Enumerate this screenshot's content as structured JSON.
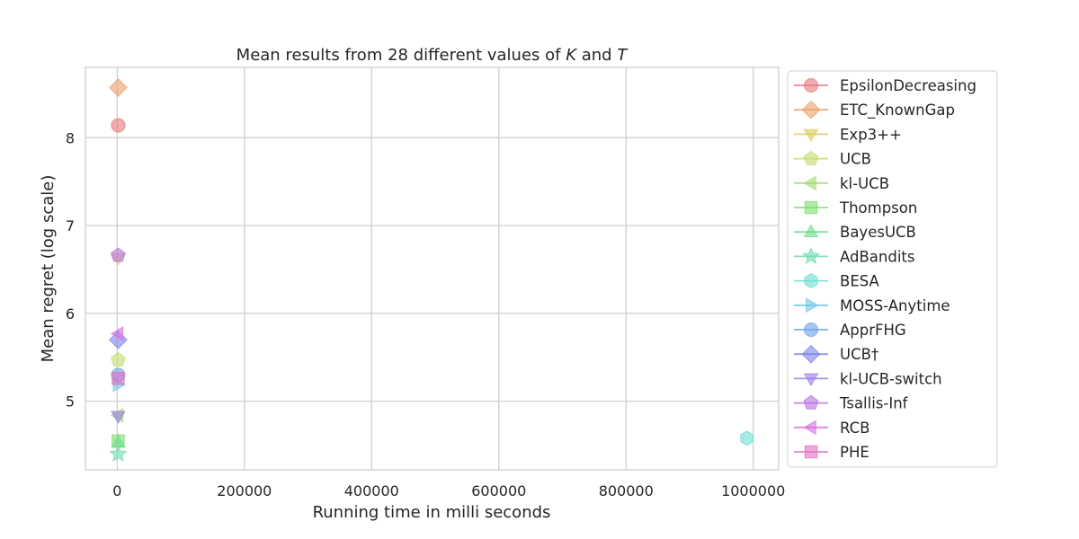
{
  "chart_data": {
    "type": "scatter",
    "title_text": "Mean results from 28 different values of ",
    "title_k": "K",
    "title_and": " and ",
    "title_t": "T",
    "xlabel": "Running time in milli seconds",
    "ylabel": "Mean regret (log scale)",
    "xlim": [
      -50000,
      1040000
    ],
    "ylim": [
      4.22,
      8.8
    ],
    "xticks": [
      0,
      200000,
      400000,
      600000,
      800000,
      1000000
    ],
    "xtick_labels": [
      "0",
      "200000",
      "400000",
      "600000",
      "800000",
      "1000000"
    ],
    "yticks": [
      5,
      6,
      7,
      8
    ],
    "ytick_labels": [
      "5",
      "6",
      "7",
      "8"
    ],
    "grid": true,
    "legend_position": "outside right",
    "series": [
      {
        "name": "EpsilonDecreasing",
        "marker": "circle",
        "color": "#e8747c",
        "x": 1500,
        "y": 8.14
      },
      {
        "name": "ETC_KnownGap",
        "marker": "diamond",
        "color": "#e9a06a",
        "x": 1500,
        "y": 8.57
      },
      {
        "name": "Exp3++",
        "marker": "triangle-down",
        "color": "#dcc85c",
        "x": 1500,
        "y": 6.63
      },
      {
        "name": "UCB",
        "marker": "pentagon",
        "color": "#c4dc6c",
        "x": 1500,
        "y": 5.47
      },
      {
        "name": "kl-UCB",
        "marker": "triangle-left",
        "color": "#a2dc6c",
        "x": 1500,
        "y": 4.84
      },
      {
        "name": "Thompson",
        "marker": "square",
        "color": "#7cdc6c",
        "x": 1500,
        "y": 4.55
      },
      {
        "name": "BayesUCB",
        "marker": "triangle-up",
        "color": "#6cdc8c",
        "x": 1500,
        "y": 4.53
      },
      {
        "name": "AdBandits",
        "marker": "star",
        "color": "#6cdcb0",
        "x": 1500,
        "y": 4.4
      },
      {
        "name": "BESA",
        "marker": "hexagon",
        "color": "#6cdcd2",
        "x": 990000,
        "y": 4.58
      },
      {
        "name": "MOSS-Anytime",
        "marker": "triangle-right",
        "color": "#6cc4e8",
        "x": 1500,
        "y": 5.19
      },
      {
        "name": "ApprFHG",
        "marker": "circle",
        "color": "#6ca0e8",
        "x": 1500,
        "y": 5.3
      },
      {
        "name": "UCB†",
        "marker": "diamond",
        "color": "#7a84e8",
        "x": 1500,
        "y": 5.7
      },
      {
        "name": "kl-UCB-switch",
        "marker": "triangle-down",
        "color": "#9a7ae8",
        "x": 1500,
        "y": 4.83
      },
      {
        "name": "Tsallis-Inf",
        "marker": "pentagon",
        "color": "#b870e0",
        "x": 1500,
        "y": 6.66
      },
      {
        "name": "RCB",
        "marker": "triangle-left",
        "color": "#d870e0",
        "x": 1500,
        "y": 5.77
      },
      {
        "name": "PHE",
        "marker": "square",
        "color": "#e070c0",
        "x": 1500,
        "y": 5.26
      }
    ]
  }
}
